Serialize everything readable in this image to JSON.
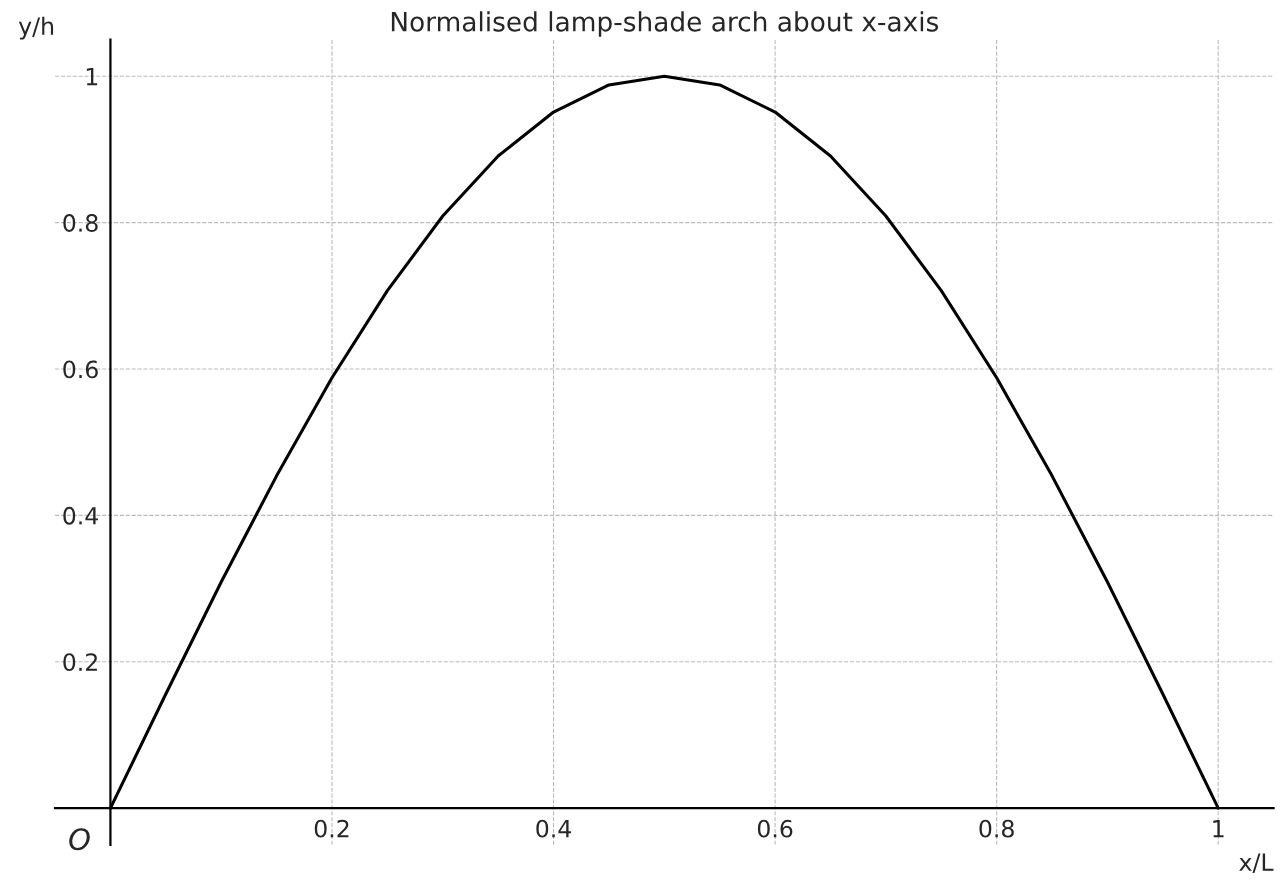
{
  "chart_data": {
    "type": "line",
    "title": "Normalised lamp-shade arch about x-axis",
    "xlabel": "x/L",
    "ylabel": "y/h",
    "x": [
      0,
      0.05,
      0.1,
      0.15,
      0.2,
      0.25,
      0.3,
      0.35,
      0.4,
      0.45,
      0.5,
      0.55,
      0.6,
      0.65,
      0.7,
      0.75,
      0.8,
      0.85,
      0.9,
      0.95,
      1
    ],
    "series": [
      {
        "color": "#000000",
        "values": [
          0,
          0.156,
          0.309,
          0.454,
          0.588,
          0.707,
          0.809,
          0.891,
          0.951,
          0.988,
          1,
          0.988,
          0.951,
          0.891,
          0.809,
          0.707,
          0.588,
          0.454,
          0.309,
          0.156,
          0
        ]
      }
    ],
    "xlim": [
      -0.05,
      1.05
    ],
    "ylim": [
      -0.05,
      1.05
    ],
    "xticks": [
      0.2,
      0.4,
      0.6,
      0.8,
      1
    ],
    "yticks": [
      0.2,
      0.4,
      0.6,
      0.8,
      1
    ],
    "annotations": [
      {
        "text": "O",
        "x": 0,
        "y": 0
      }
    ],
    "grid": true,
    "marker": "none",
    "line_style": "solid"
  }
}
